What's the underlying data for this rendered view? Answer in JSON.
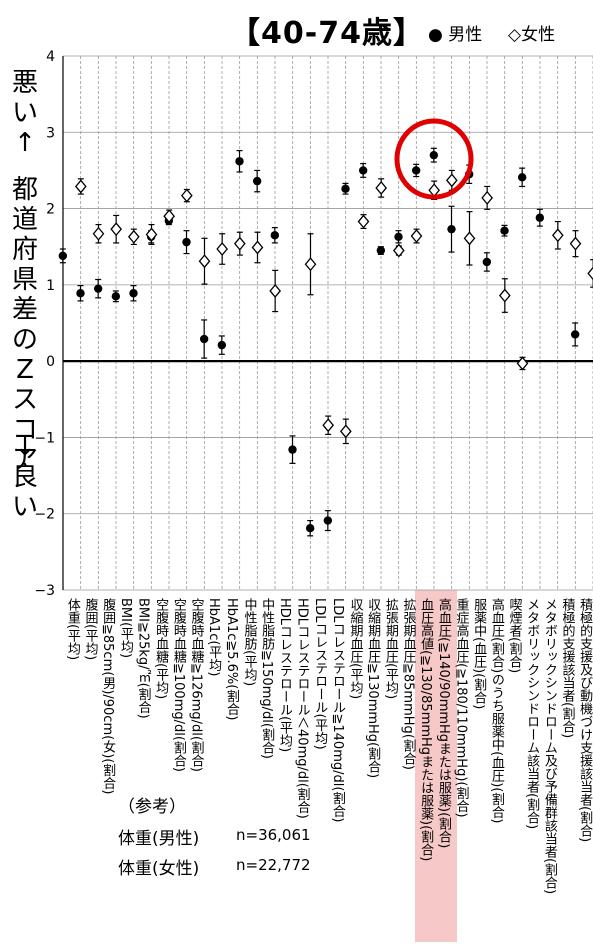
{
  "header": {
    "title": "【40-74歳】",
    "legend_male": "● 男性",
    "legend_female": "◇女性"
  },
  "side_labels": {
    "top": "悪い↑",
    "middle": "都道府県差のZスコア",
    "bottom": "↓良い"
  },
  "reference": {
    "title": "（参考）",
    "male_label": "体重(男性)",
    "male_n": "n=36,061",
    "female_label": "体重(女性)",
    "female_n": "n=22,772"
  },
  "colors": {
    "grid": "#999999",
    "axis": "#000000",
    "highlight_fill": "#f7c8c8",
    "circle": "#e00000"
  },
  "chart_data": {
    "type": "scatter",
    "ylim": [
      -3,
      4
    ],
    "yticks": [
      "4",
      "3",
      "2",
      "1",
      "0",
      "−1",
      "−2",
      "−3"
    ],
    "ytick_values": [
      4,
      3,
      2,
      1,
      0,
      -1,
      -2,
      -3
    ],
    "grid": "vertical-dashed-and-horizontal",
    "legend_placement": "top-right",
    "categories": [
      "体重(平均)",
      "腹囲(平均)",
      "腹囲≧85cm(男)/90cm(女)(割合)",
      "BMI(平均)",
      "BMI≧25kg/㎡(割合)",
      "空腹時血糖(平均)",
      "空腹時血糖≧100mg/dl(割合)",
      "空腹時血糖≧126mg/dl(割合)",
      "HbA1c(平均)",
      "HbA1c≧5.6%(割合)",
      "中性脂肪(平均)",
      "中性脂肪≧150mg/dl(割合)",
      "HDLコレステロール(平均)",
      "HDLコレステロール＜40mg/dl(割合)",
      "LDLコレステロール(平均)",
      "LDLコレステロール≧140mg/dl(割合)",
      "収縮期血圧(平均)",
      "収縮期血圧≧130mmHg(割合)",
      "拡張期血圧(平均)",
      "拡張期血圧≧85mmHg(割合)",
      "血圧高値(≧130/85mmHgまたは服薬)(割合)",
      "高血圧(≧140/90mmHgまたは服薬)(割合)",
      "重症高血圧(≧180/110mmHg)(割合)",
      "服薬中(血圧)(割合)",
      "高血圧(割合)のうち服薬中(血圧)(割合)",
      "喫煙者(割合)",
      "メタボリックシンドローム該当者(割合)",
      "メタボリックシンドローム及び予備群該当者(割合)",
      "積極的支援該当者(割合)",
      "積極的支援及び動機づけ支援該当者(割合)"
    ],
    "series": [
      {
        "name": "男性",
        "marker": "filled-circle",
        "values": [
          1.38,
          0.89,
          0.95,
          0.85,
          0.89,
          1.63,
          1.84,
          1.56,
          0.29,
          0.21,
          2.62,
          2.36,
          1.65,
          -1.16,
          -2.19,
          -2.09,
          2.26,
          2.5,
          1.45,
          1.63,
          2.5,
          2.7,
          1.73,
          2.45,
          1.3,
          1.71,
          2.41,
          1.88,
          0,
          0.35
        ],
        "errors": [
          0.09,
          0.1,
          0.12,
          0.07,
          0.1,
          0.08,
          0.05,
          0.15,
          0.25,
          0.12,
          0.14,
          0.14,
          0.1,
          0.18,
          0.1,
          0.13,
          0.07,
          0.09,
          0.05,
          0.08,
          0.08,
          0.09,
          0.3,
          0.12,
          0.12,
          0.07,
          0.12,
          0.11,
          0,
          0.15
        ],
        "missing": [
          28
        ]
      },
      {
        "name": "女性",
        "marker": "open-diamond",
        "values": [
          2.29,
          1.67,
          1.73,
          1.63,
          1.66,
          1.9,
          2.17,
          1.31,
          1.47,
          1.54,
          1.49,
          0.92,
          0,
          1.27,
          -0.84,
          -0.92,
          1.83,
          2.27,
          1.45,
          1.64,
          2.24,
          2.37,
          1.61,
          2.14,
          0.86,
          -0.03,
          0,
          1.65,
          1.54,
          1.15
        ],
        "errors": [
          0.1,
          0.12,
          0.18,
          0.1,
          0.13,
          0.08,
          0.08,
          0.3,
          0.2,
          0.15,
          0.2,
          0.27,
          0,
          0.4,
          0.12,
          0.16,
          0.09,
          0.12,
          0.06,
          0.09,
          0.12,
          0.13,
          0.35,
          0.15,
          0.22,
          0.08,
          0,
          0.18,
          0.17,
          0.18
        ],
        "missing": [
          12,
          26
        ]
      }
    ],
    "annotation": {
      "type": "red-circle",
      "categories_highlighted": [
        20,
        21
      ]
    }
  }
}
